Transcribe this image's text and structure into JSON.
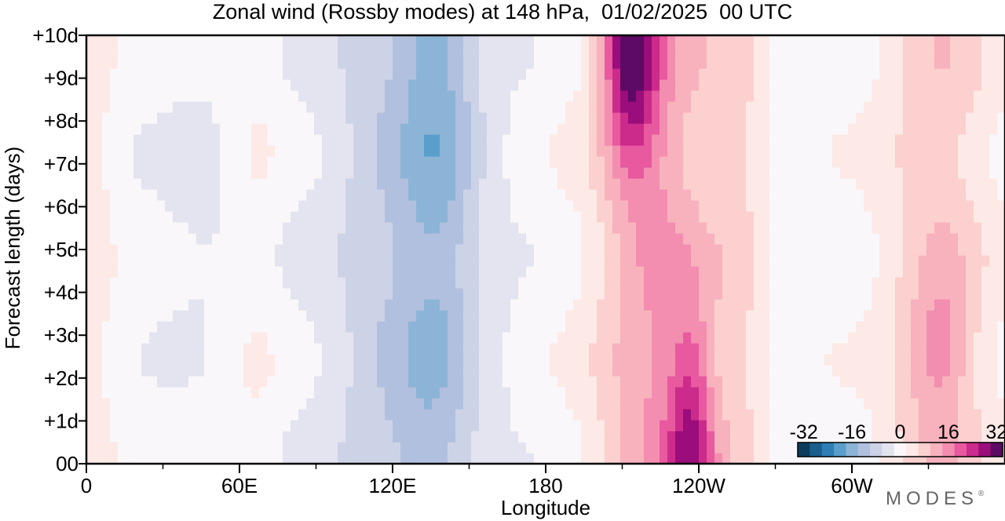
{
  "header": {
    "title": "Zonal wind (Rossby modes) at 148 hPa,  01/02/2025  00 UTC"
  },
  "brand": {
    "name": "MODES",
    "mark": "®"
  },
  "chart_data": {
    "type": "heatmap",
    "title": "Zonal wind (Rossby modes) at 148 hPa,  01/02/2025  00 UTC",
    "xlabel": "Longitude",
    "ylabel": "Forecast length (days)",
    "x_ticks": [
      "0",
      "60E",
      "120E",
      "180",
      "120W",
      "60W"
    ],
    "x_tick_values": [
      0,
      60,
      120,
      180,
      240,
      300
    ],
    "x_minor_values": [
      30,
      90,
      150,
      210,
      270,
      330
    ],
    "xlim": [
      0,
      360
    ],
    "y_ticks": [
      "00",
      "+1d",
      "+2d",
      "+3d",
      "+4d",
      "+5d",
      "+6d",
      "+7d",
      "+8d",
      "+9d",
      "+10d"
    ],
    "y_tick_values": [
      0,
      1,
      2,
      3,
      4,
      5,
      6,
      7,
      8,
      9,
      10
    ],
    "ylim": [
      0,
      10
    ],
    "colorbar": {
      "ticks": [
        "-32",
        "-16",
        "0",
        "16",
        "32"
      ],
      "tick_values": [
        -32,
        -16,
        0,
        16,
        32
      ],
      "levels": [
        -32,
        -28,
        -24,
        -20,
        -16,
        -12,
        -8,
        -4,
        0,
        4,
        8,
        12,
        16,
        20,
        24,
        28,
        32
      ],
      "colors": [
        "#0d3d5c",
        "#1a5f8c",
        "#2f7fb5",
        "#5a9fcb",
        "#8cb4d6",
        "#b1c0de",
        "#cdd3e7",
        "#e3e4f0",
        "#f9f7f9",
        "#fde9e6",
        "#fbd0cf",
        "#f8b2bd",
        "#f38eb0",
        "#e8599f",
        "#cc2b8b",
        "#9a0d7a",
        "#5c0a63"
      ]
    },
    "grid": false,
    "field_description": "Negative (blue) easterlies between ~70E and ~170E strongest near 105-155E; positive (pink/purple) westerlies from ~185E to ~265E peaking near 155W-140W; weak positive band 290-360E."
  }
}
